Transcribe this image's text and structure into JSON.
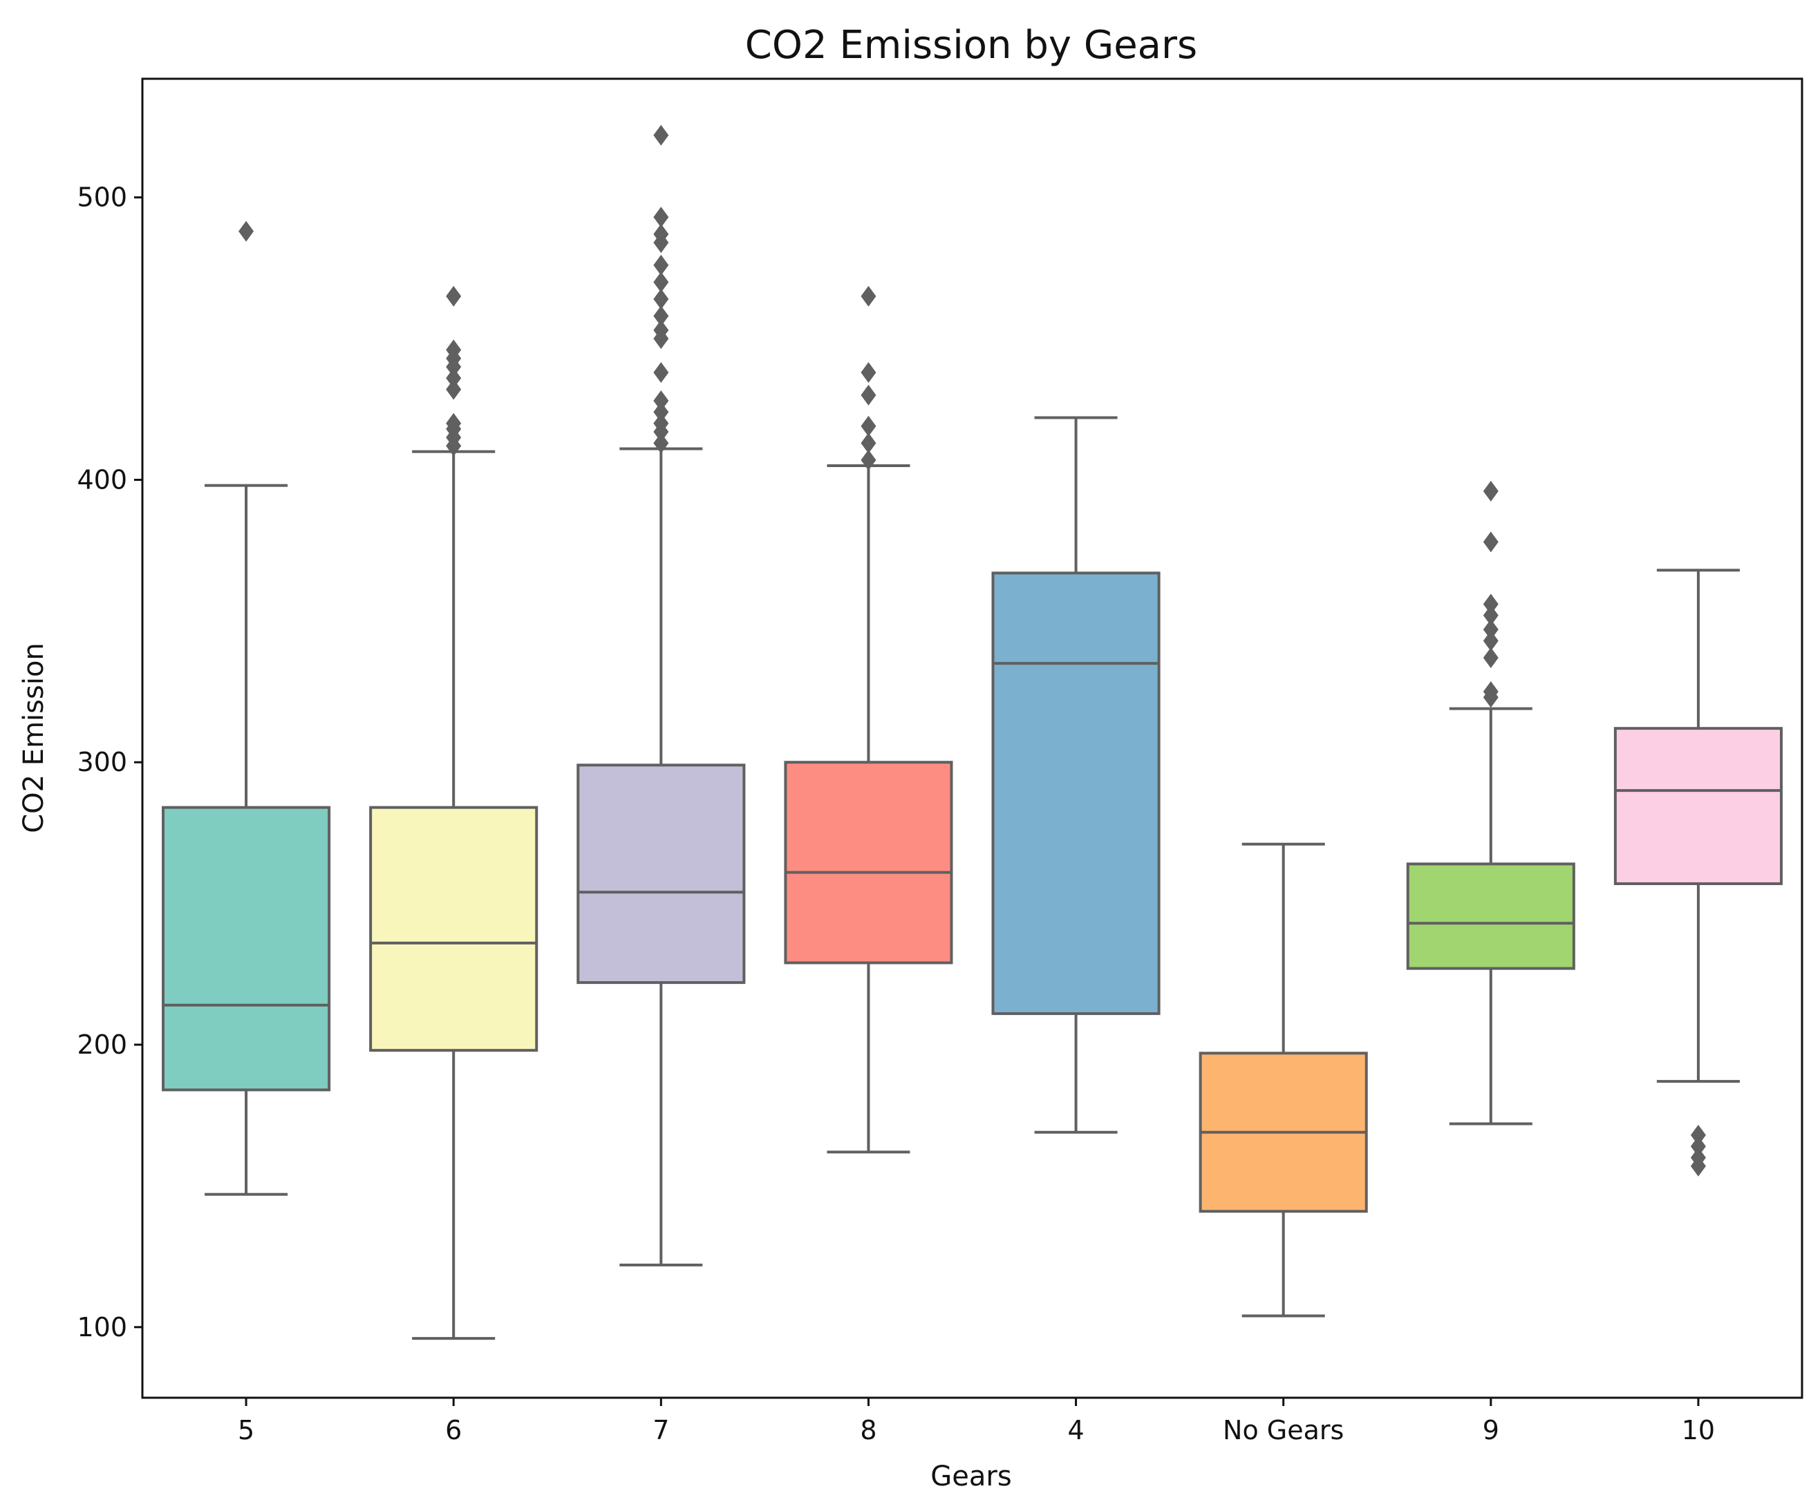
{
  "chart_data": {
    "type": "box",
    "title": "CO2 Emission by Gears",
    "xlabel": "Gears",
    "ylabel": "CO2 Emission",
    "ylim": [
      75,
      542
    ],
    "yticks": [
      100,
      200,
      300,
      400,
      500
    ],
    "grid": false,
    "categories": [
      "5",
      "6",
      "7",
      "8",
      "4",
      "No Gears",
      "9",
      "10"
    ],
    "colors": [
      "#7fcdc0",
      "#f8f6ba",
      "#c3bfd8",
      "#fd8d82",
      "#7bb1cf",
      "#fcb46f",
      "#a1d56f",
      "#fdcfe5"
    ],
    "line_color": "#606060",
    "outlier_color": "#606060",
    "boxes": [
      {
        "category": "5",
        "whisker_low": 147,
        "q1": 184,
        "median": 214,
        "q3": 284,
        "whisker_high": 398,
        "outliers": [
          488
        ]
      },
      {
        "category": "6",
        "whisker_low": 96,
        "q1": 198,
        "median": 236,
        "q3": 284,
        "whisker_high": 410,
        "outliers": [
          412,
          415,
          418,
          420,
          432,
          436,
          440,
          443,
          446,
          465
        ]
      },
      {
        "category": "7",
        "whisker_low": 122,
        "q1": 222,
        "median": 254,
        "q3": 299,
        "whisker_high": 411,
        "outliers": [
          413,
          417,
          420,
          424,
          428,
          438,
          450,
          453,
          458,
          464,
          470,
          476,
          484,
          487,
          493,
          522
        ]
      },
      {
        "category": "8",
        "whisker_low": 162,
        "q1": 229,
        "median": 261,
        "q3": 300,
        "whisker_high": 405,
        "outliers": [
          407,
          413,
          419,
          430,
          438,
          465
        ]
      },
      {
        "category": "4",
        "whisker_low": 169,
        "q1": 211,
        "median": 335,
        "q3": 367,
        "whisker_high": 422,
        "outliers": []
      },
      {
        "category": "No Gears",
        "whisker_low": 104,
        "q1": 141,
        "median": 169,
        "q3": 197,
        "whisker_high": 271,
        "outliers": []
      },
      {
        "category": "9",
        "whisker_low": 172,
        "q1": 227,
        "median": 243,
        "q3": 264,
        "whisker_high": 319,
        "outliers": [
          323,
          325,
          337,
          343,
          347,
          352,
          356,
          378,
          396
        ]
      },
      {
        "category": "10",
        "whisker_low": 187,
        "q1": 257,
        "median": 290,
        "q3": 312,
        "whisker_high": 368,
        "outliers": [
          157,
          160,
          164,
          168
        ]
      }
    ]
  }
}
